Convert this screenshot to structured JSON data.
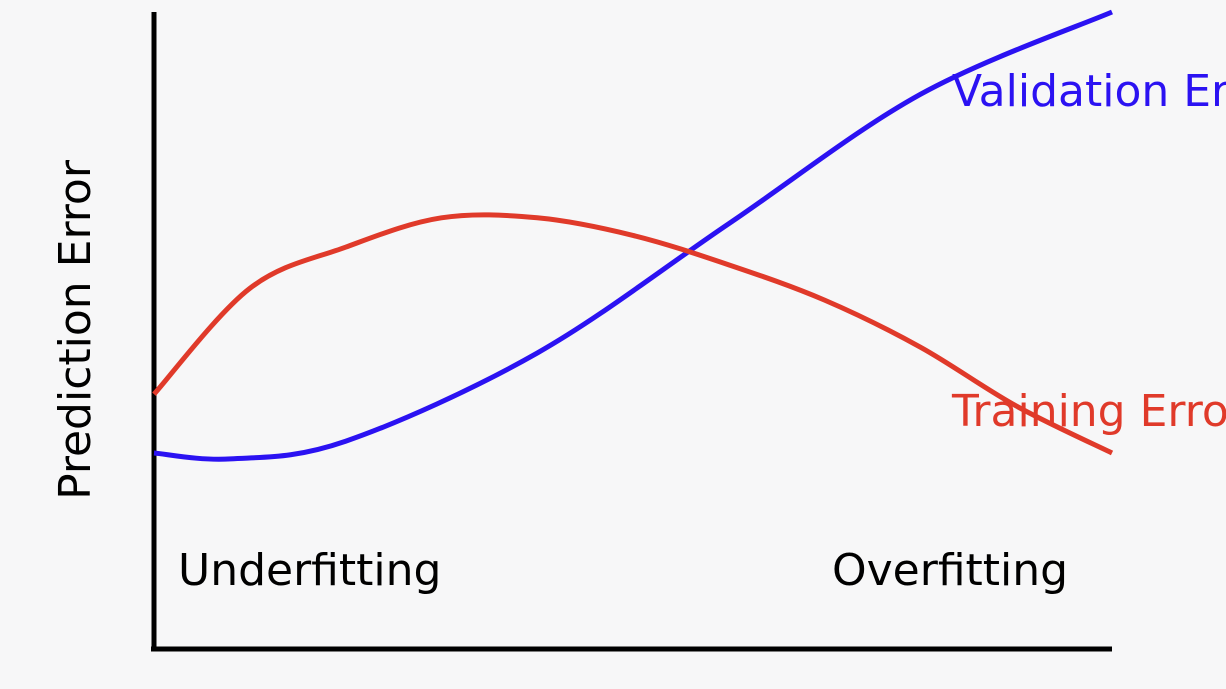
{
  "chart_data": {
    "type": "line",
    "title": "",
    "xlabel": "",
    "ylabel": "Prediction Error",
    "xlim": [
      0,
      1
    ],
    "ylim": [
      0,
      1
    ],
    "grid": false,
    "legend": "none",
    "annotations": [
      "Underfitting",
      "Overfitting"
    ],
    "series": [
      {
        "name": "Validation Error",
        "color": "#2b12f2",
        "x": [
          0.0,
          0.08,
          0.2,
          0.4,
          0.6,
          0.8,
          1.0
        ],
        "y": [
          0.25,
          0.24,
          0.27,
          0.42,
          0.64,
          0.86,
          1.0
        ]
      },
      {
        "name": "Training Error",
        "color": "#e03a2a",
        "x": [
          0.0,
          0.1,
          0.2,
          0.3,
          0.4,
          0.5,
          0.6,
          0.7,
          0.8,
          0.9,
          1.0
        ],
        "y": [
          0.35,
          0.53,
          0.6,
          0.65,
          0.65,
          0.62,
          0.57,
          0.51,
          0.43,
          0.33,
          0.25
        ]
      }
    ]
  }
}
